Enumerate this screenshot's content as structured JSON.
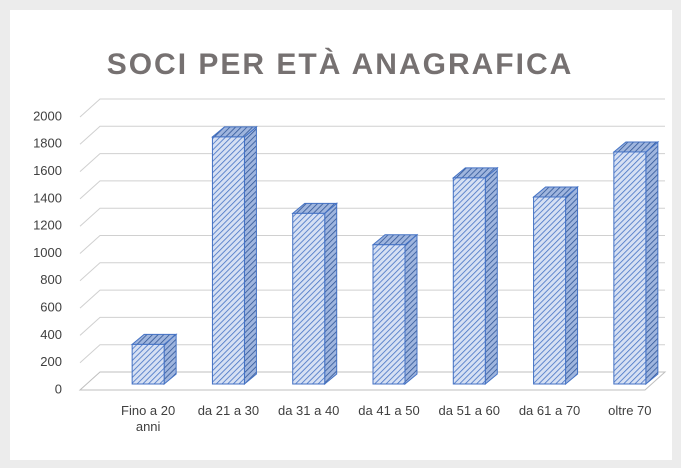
{
  "chart_data": {
    "type": "bar3d",
    "title": "SOCI PER ETÀ ANAGRAFICA",
    "categories": [
      "Fino a 20 anni",
      "da 21 a 30",
      "da 31 a 40",
      "da 41 a 50",
      "da 51 a 60",
      "da 61 a 70",
      "oltre 70"
    ],
    "values": [
      290,
      1810,
      1250,
      1020,
      1510,
      1370,
      1700
    ],
    "color": "#4472c4",
    "ylim": [
      0,
      2000
    ],
    "yticks": [
      0,
      200,
      400,
      600,
      800,
      1000,
      1200,
      1400,
      1600,
      1800,
      2000
    ],
    "grid": true
  }
}
